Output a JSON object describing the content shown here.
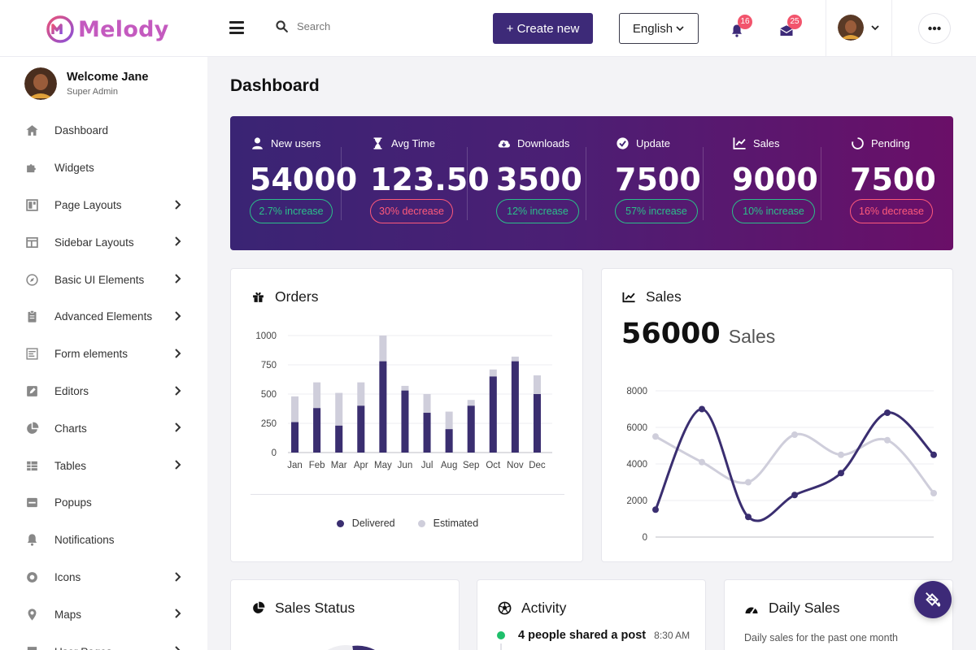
{
  "brand": {
    "name": "Melody",
    "color": "#c45abf"
  },
  "header": {
    "search_placeholder": "Search",
    "create_label": "+ Create new",
    "language": "English",
    "notifications_count": "16",
    "messages_count": "25"
  },
  "user": {
    "welcome": "Welcome Jane",
    "role": "Super Admin"
  },
  "sidebar": {
    "items": [
      {
        "label": "Dashboard",
        "icon": "home-icon",
        "chevron": false
      },
      {
        "label": "Widgets",
        "icon": "puzzle-icon",
        "chevron": false
      },
      {
        "label": "Page Layouts",
        "icon": "layout-icon",
        "chevron": true
      },
      {
        "label": "Sidebar Layouts",
        "icon": "columns-icon",
        "chevron": true
      },
      {
        "label": "Basic UI Elements",
        "icon": "compass-icon",
        "chevron": true
      },
      {
        "label": "Advanced Elements",
        "icon": "clipboard-icon",
        "chevron": true
      },
      {
        "label": "Form elements",
        "icon": "form-icon",
        "chevron": true
      },
      {
        "label": "Editors",
        "icon": "edit-icon",
        "chevron": true
      },
      {
        "label": "Charts",
        "icon": "pie-chart-icon",
        "chevron": true
      },
      {
        "label": "Tables",
        "icon": "table-icon",
        "chevron": true
      },
      {
        "label": "Popups",
        "icon": "window-icon",
        "chevron": false
      },
      {
        "label": "Notifications",
        "icon": "bell-icon",
        "chevron": false
      },
      {
        "label": "Icons",
        "icon": "circle-icon",
        "chevron": true
      },
      {
        "label": "Maps",
        "icon": "map-pin-icon",
        "chevron": true
      },
      {
        "label": "User Pages",
        "icon": "user-pages-icon",
        "chevron": true
      }
    ]
  },
  "page": {
    "title": "Dashboard"
  },
  "stats": [
    {
      "label": "New users",
      "value": "54000",
      "change": "2.7% increase",
      "trend": "up",
      "icon": "user-icon"
    },
    {
      "label": "Avg Time",
      "value": "123.50",
      "change": "30% decrease",
      "trend": "down",
      "icon": "hourglass-icon"
    },
    {
      "label": "Downloads",
      "value": "3500",
      "change": "12% increase",
      "trend": "up",
      "icon": "cloud-download-icon"
    },
    {
      "label": "Update",
      "value": "7500",
      "change": "57% increase",
      "trend": "up",
      "icon": "check-circle-icon"
    },
    {
      "label": "Sales",
      "value": "9000",
      "change": "10% increase",
      "trend": "up",
      "icon": "chart-line-icon"
    },
    {
      "label": "Pending",
      "value": "7500",
      "change": "16% decrease",
      "trend": "down",
      "icon": "spinner-icon"
    }
  ],
  "cards": {
    "orders_title": "Orders",
    "sales_title": "Sales",
    "sales_total": "56000",
    "sales_unit": "Sales",
    "sales_status_title": "Sales Status",
    "activity_title": "Activity",
    "activity_first": "4 people shared a post",
    "activity_time": "8:30 AM",
    "daily_sales_title": "Daily Sales",
    "daily_sales_subtitle": "Daily sales for the past one month"
  },
  "chart_data": [
    {
      "type": "bar",
      "title": "Orders",
      "categories": [
        "Jan",
        "Feb",
        "Mar",
        "Apr",
        "May",
        "Jun",
        "Jul",
        "Aug",
        "Sep",
        "Oct",
        "Nov",
        "Dec"
      ],
      "series": [
        {
          "name": "Delivered",
          "values": [
            260,
            380,
            230,
            400,
            780,
            530,
            340,
            200,
            400,
            650,
            780,
            500
          ],
          "color": "#3a2e70"
        },
        {
          "name": "Estimated",
          "values": [
            480,
            600,
            510,
            600,
            1000,
            570,
            500,
            350,
            450,
            710,
            820,
            660
          ],
          "color": "#cfcedb"
        }
      ],
      "stacked_overlay": true,
      "ylim": [
        0,
        1000
      ],
      "yticks": [
        0,
        250,
        500,
        750,
        1000
      ],
      "grid": true,
      "legend": "bottom"
    },
    {
      "type": "line",
      "title": "Sales",
      "x": [
        0,
        1,
        2,
        3,
        4,
        5,
        6
      ],
      "series": [
        {
          "values": [
            1500,
            7000,
            1100,
            2300,
            3500,
            6800,
            4500
          ],
          "color": "#3a2e70"
        },
        {
          "values": [
            5500,
            4100,
            3000,
            5600,
            4500,
            5300,
            2400
          ],
          "color": "#cfcedb"
        }
      ],
      "ylim": [
        0,
        8000
      ],
      "yticks": [
        0,
        2000,
        4000,
        6000,
        8000
      ],
      "grid": true,
      "smooth": true
    }
  ]
}
